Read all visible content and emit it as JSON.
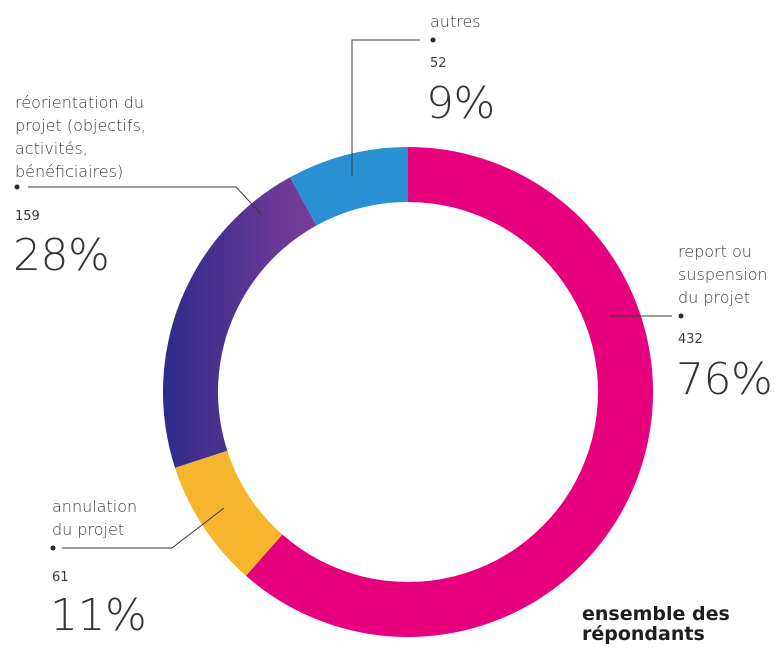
{
  "chart_data": {
    "type": "pie",
    "donut": true,
    "caption": [
      "ensemble des",
      "répondants"
    ],
    "slices": [
      {
        "label": "report ou suspension du projet",
        "label_lines": [
          "report ou",
          "suspension",
          "du projet"
        ],
        "count": "432",
        "percent_label": "76%",
        "value": 432,
        "color": "#e6007e"
      },
      {
        "label": "annulation du projet",
        "label_lines": [
          "annulation",
          "du projet"
        ],
        "count": "61",
        "percent_label": "11%",
        "value": 61,
        "color": "#f6b52e"
      },
      {
        "label": "réorientation du projet (objectifs, activités, bénéficiaires)",
        "label_lines": [
          "réorientation du",
          "projet (objectifs,",
          "activités,",
          "bénéficiaires)"
        ],
        "count": "159",
        "percent_label": "28%",
        "value": 159,
        "colors": [
          "#2e2a8a",
          "#7b3e98"
        ]
      },
      {
        "label": "autres",
        "label_lines": [
          "autres"
        ],
        "count": "52",
        "percent_label": "9%",
        "value": 52,
        "color": "#2991d3"
      }
    ]
  }
}
